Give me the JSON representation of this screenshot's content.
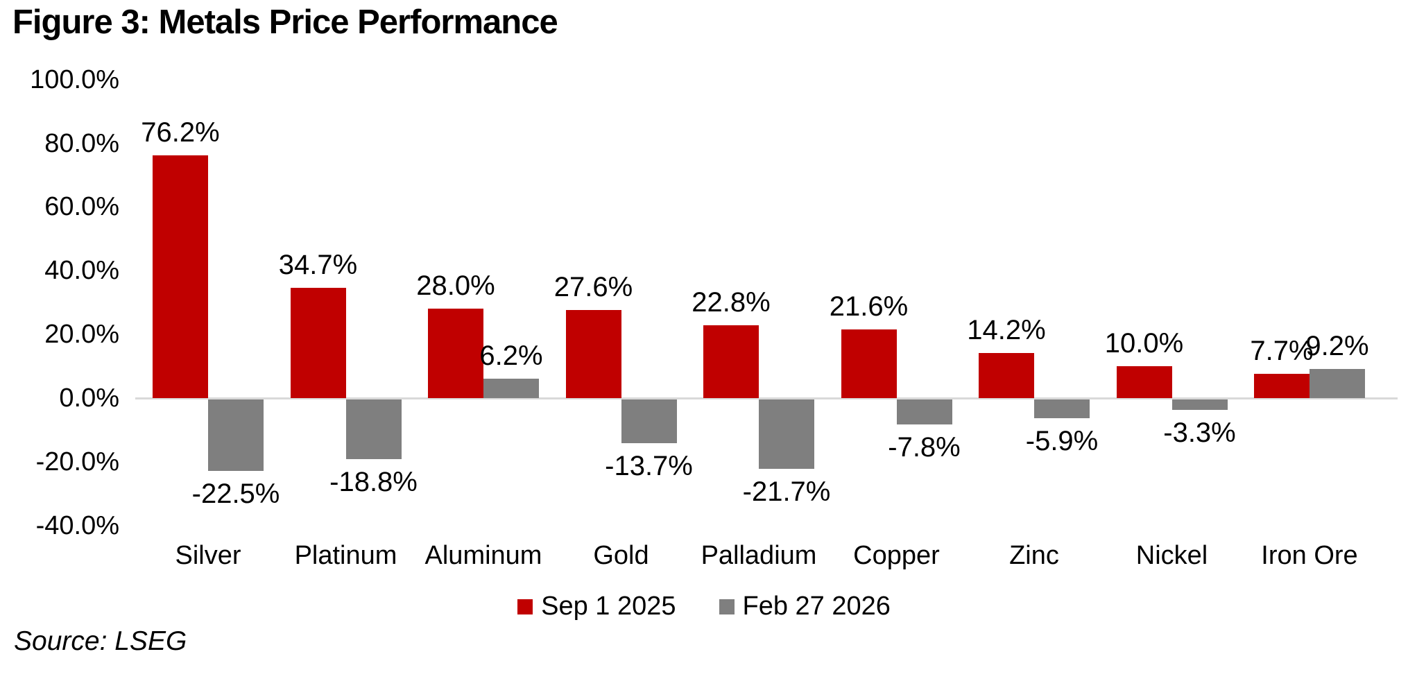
{
  "figure_label": "Figure 3",
  "source": "Source: LSEG",
  "chart_data": {
    "type": "bar",
    "title": "Figure 3: Metals Price Performance",
    "categories": [
      "Silver",
      "Platinum",
      "Aluminum",
      "Gold",
      "Palladium",
      "Copper",
      "Zinc",
      "Nickel",
      "Iron Ore"
    ],
    "series": [
      {
        "name": "Sep 1 2025",
        "color": "#c00000",
        "values": [
          76.2,
          34.7,
          28.0,
          27.6,
          22.8,
          21.6,
          14.2,
          10.0,
          7.7
        ],
        "labels": [
          "76.2%",
          "34.7%",
          "28.0%",
          "27.6%",
          "22.8%",
          "21.6%",
          "14.2%",
          "10.0%",
          "7.7%"
        ]
      },
      {
        "name": "Feb 27 2026",
        "color": "#7f7f7f",
        "values": [
          -22.5,
          -18.8,
          6.2,
          -13.7,
          -21.7,
          -7.8,
          -5.9,
          -3.3,
          9.2
        ],
        "labels": [
          "-22.5%",
          "-18.8%",
          "6.2%",
          "-13.7%",
          "-21.7%",
          "-7.8%",
          "-5.9%",
          "-3.3%",
          "9.2%"
        ]
      }
    ],
    "xlabel": "",
    "ylabel": "",
    "ylim": [
      -40,
      100
    ],
    "y_axis": {
      "tick_labels": [
        "100.0%",
        "80.0%",
        "60.0%",
        "40.0%",
        "20.0%",
        "0.0%",
        "-20.0%",
        "-40.0%"
      ],
      "tick_values": [
        100,
        80,
        60,
        40,
        20,
        0,
        -20,
        -40
      ]
    },
    "grid": false,
    "legend_position": "bottom",
    "axis_line_color": "#d9d9d9",
    "text_color": "#000000"
  }
}
